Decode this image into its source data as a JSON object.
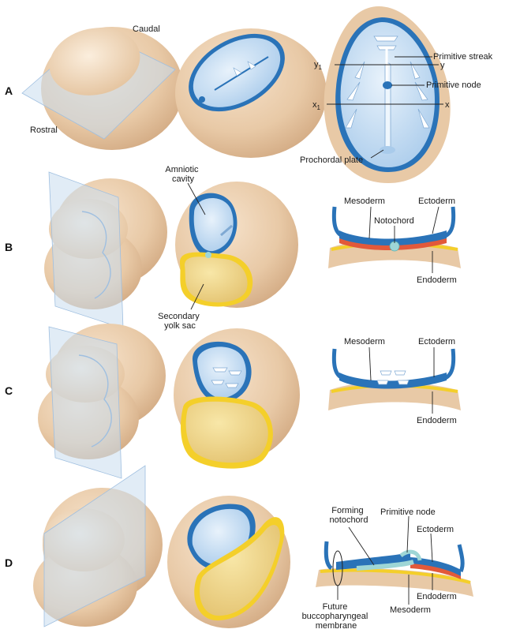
{
  "rows": {
    "a": "A",
    "b": "B",
    "c": "C",
    "d": "D"
  },
  "labels": {
    "caudal": "Caudal",
    "rostral": "Rostral",
    "primitive_streak": "Primitive streak",
    "y1": "y",
    "y1_sub": "1",
    "y": "y",
    "primitive_node": "Primitive node",
    "x1": "x",
    "x1_sub": "1",
    "x": "x",
    "prochordal_plate": "Prochordal plate",
    "amniotic_cavity": [
      "Amniotic",
      "cavity"
    ],
    "secondary_yolk_sac": [
      "Secondary",
      "yolk sac"
    ],
    "b_mesoderm": "Mesoderm",
    "b_ectoderm": "Ectoderm",
    "b_notochord": "Notochord",
    "b_endoderm": "Endoderm",
    "c_mesoderm": "Mesoderm",
    "c_ectoderm": "Ectoderm",
    "c_endoderm": "Endoderm",
    "forming_notochord": [
      "Forming",
      "notochord"
    ],
    "d_primitive_node": "Primitive node",
    "d_ectoderm": "Ectoderm",
    "d_endoderm": "Endoderm",
    "d_mesoderm": "Mesoderm",
    "buccopharyngeal": [
      "Future",
      "buccopharyngeal",
      "membrane"
    ]
  },
  "colors": {
    "tan": "#e8c9a6",
    "tan_dark": "#d4a980",
    "ectoderm_blue": "#2a73b8",
    "cavity_blue": "#cfe3f5",
    "yolk_yellow": "#f4cf2a",
    "yolk_fill": "#f3dc8e",
    "mesoderm_red": "#e2593a",
    "plane_blue": "#c9dcef"
  }
}
